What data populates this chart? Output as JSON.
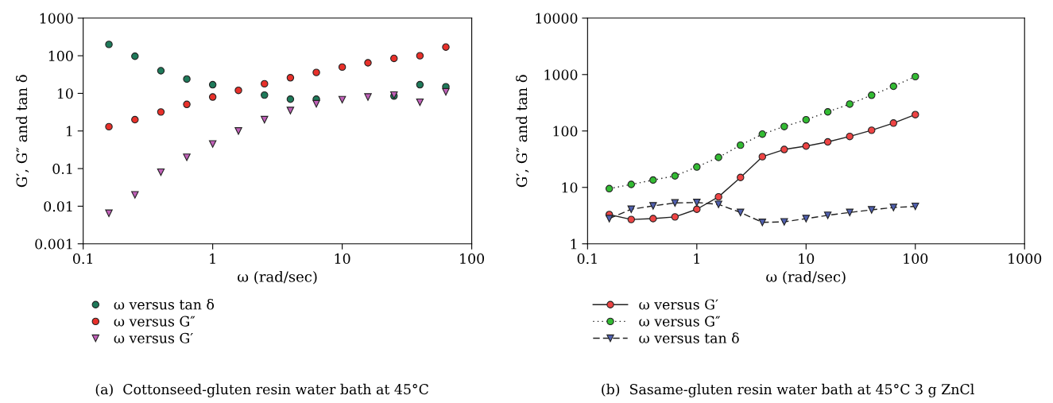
{
  "chart_data": [
    {
      "type": "scatter",
      "xlabel": "ω (rad/sec)",
      "ylabel": "G′, G″ and tan δ",
      "log": "xy",
      "xlim": [
        0.1,
        100
      ],
      "xticks": [
        0.1,
        1,
        10,
        100
      ],
      "ylim": [
        0.001,
        1000
      ],
      "yticks": [
        0.001,
        0.01,
        0.1,
        1,
        10,
        100,
        1000
      ],
      "legend": "bottom",
      "grid": false,
      "x": [
        0.158,
        0.251,
        0.398,
        0.631,
        1,
        1.58,
        2.51,
        3.98,
        6.31,
        10,
        15.8,
        25.1,
        39.8,
        63.1
      ],
      "series": [
        {
          "name": "ω versus tan δ",
          "color": "#1e7a5a",
          "marker": "circle",
          "values": [
            200,
            97,
            40,
            24,
            17,
            null,
            9,
            7,
            7,
            null,
            null,
            8.5,
            17,
            15
          ]
        },
        {
          "name": "ω versus G″",
          "color": "#e8302a",
          "marker": "circle",
          "values": [
            1.3,
            2,
            3.2,
            5.1,
            8,
            12,
            18,
            26,
            36,
            50,
            65,
            85,
            100,
            170
          ]
        },
        {
          "name": "ω versus G′",
          "color": "#c060b8",
          "marker": "triangle",
          "values": [
            0.0065,
            0.02,
            0.08,
            0.2,
            0.45,
            1.0,
            2.0,
            3.5,
            5.3,
            6.8,
            8,
            9,
            5.8,
            11
          ]
        }
      ],
      "annotations": [
        "(a)  Cottonseed-gluten resin water bath at 45°C"
      ]
    },
    {
      "type": "line",
      "xlabel": "ω (rad/sec)",
      "ylabel": "G′, G″ and tan δ",
      "log": "xy",
      "xlim": [
        0.1,
        1000
      ],
      "xticks": [
        0.1,
        1,
        10,
        100,
        1000
      ],
      "ylim": [
        1,
        10000
      ],
      "yticks": [
        1,
        10,
        100,
        1000,
        10000
      ],
      "legend": "bottom",
      "grid": false,
      "x": [
        0.158,
        0.251,
        0.398,
        0.631,
        1,
        1.58,
        2.51,
        3.98,
        6.31,
        10,
        15.8,
        25.1,
        39.8,
        63.1,
        100
      ],
      "series": [
        {
          "name": "ω versus G′",
          "color": "#ee4444",
          "marker": "circle",
          "line_style": "solid",
          "values": [
            3.3,
            2.7,
            2.8,
            3.0,
            4.1,
            6.8,
            15,
            35,
            47,
            54,
            64,
            80,
            103,
            138,
            195
          ]
        },
        {
          "name": "ω versus G″",
          "color": "#33bb33",
          "marker": "circle",
          "line_style": "dotted",
          "values": [
            9.5,
            11.3,
            13.5,
            16,
            23,
            34,
            56,
            88,
            120,
            158,
            218,
            300,
            430,
            620,
            920
          ]
        },
        {
          "name": "ω versus tan δ",
          "color": "#5060b0",
          "marker": "triangle",
          "line_style": "dashed",
          "values": [
            2.8,
            4.1,
            4.7,
            5.3,
            5.4,
            5.0,
            3.6,
            2.4,
            2.45,
            2.8,
            3.2,
            3.6,
            4.0,
            4.4,
            4.6
          ]
        }
      ],
      "annotations": [
        "(b)  Sasame-gluten resin water bath at 45°C 3 g ZnCl"
      ]
    }
  ]
}
